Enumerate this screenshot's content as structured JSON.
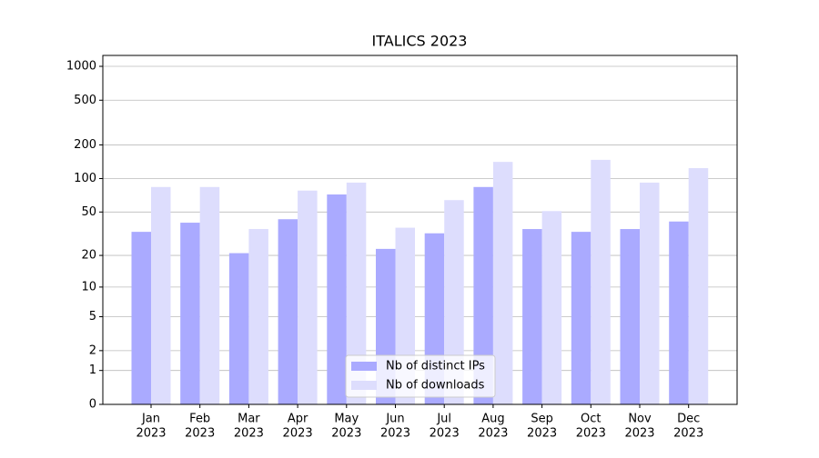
{
  "chart_data": {
    "type": "bar",
    "title": "ITALICS 2023",
    "categories": [
      [
        "Jan",
        "2023"
      ],
      [
        "Feb",
        "2023"
      ],
      [
        "Mar",
        "2023"
      ],
      [
        "Apr",
        "2023"
      ],
      [
        "May",
        "2023"
      ],
      [
        "Jun",
        "2023"
      ],
      [
        "Jul",
        "2023"
      ],
      [
        "Aug",
        "2023"
      ],
      [
        "Sep",
        "2023"
      ],
      [
        "Oct",
        "2023"
      ],
      [
        "Nov",
        "2023"
      ],
      [
        "Dec",
        "2023"
      ]
    ],
    "series": [
      {
        "name": "Nb of distinct IPs",
        "color": "#aaaaff",
        "values": [
          33,
          40,
          21,
          43,
          72,
          23,
          32,
          84,
          35,
          33,
          35,
          41
        ]
      },
      {
        "name": "Nb of downloads",
        "color": "#ddddfd",
        "values": [
          84,
          84,
          35,
          78,
          92,
          36,
          64,
          141,
          51,
          147,
          92,
          124
        ]
      }
    ],
    "yscale": "log1p",
    "ylim": [
      0,
      1250
    ],
    "yticks": [
      0,
      1,
      2,
      5,
      10,
      20,
      50,
      100,
      200,
      500,
      1000
    ],
    "grid": true,
    "legend": "lower center"
  }
}
